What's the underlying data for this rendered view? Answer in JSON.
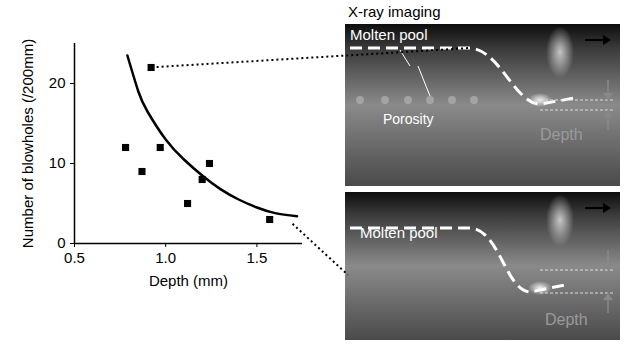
{
  "chart_data": {
    "type": "scatter",
    "x_label": "Depth (mm)",
    "y_label": "Number of blowholes (/200mm)",
    "xlim": [
      0.5,
      1.75
    ],
    "xticks": [
      0.5,
      {
        "value": 1.0,
        "label": "1.0"
      },
      1.5
    ],
    "ylim": [
      0,
      25
    ],
    "yticks": [
      0,
      10,
      20
    ],
    "series": [
      {
        "type": "scatter",
        "marker": "square",
        "color": "#000000",
        "x": [
          0.78,
          0.87,
          0.92,
          0.97,
          1.12,
          1.2,
          1.24,
          1.57
        ],
        "values": [
          12,
          9,
          22,
          12,
          5,
          8,
          10,
          3
        ]
      },
      {
        "type": "line",
        "line_style": "solid",
        "color": "#000000",
        "x": [
          0.79,
          0.85,
          0.9,
          1.0,
          1.1,
          1.2,
          1.3,
          1.4,
          1.5,
          1.6,
          1.72
        ],
        "values": [
          23.5,
          19,
          16.5,
          13,
          10.5,
          8.5,
          6.8,
          5.5,
          4.5,
          3.8,
          3.4
        ]
      }
    ]
  },
  "xray_panel": {
    "title": "X-ray imaging",
    "panels": [
      {
        "molten_pool": "Molten pool",
        "porosity": "Porosity",
        "depth": "Depth"
      },
      {
        "molten_pool": "Molten pool",
        "depth": "Depth"
      }
    ]
  }
}
